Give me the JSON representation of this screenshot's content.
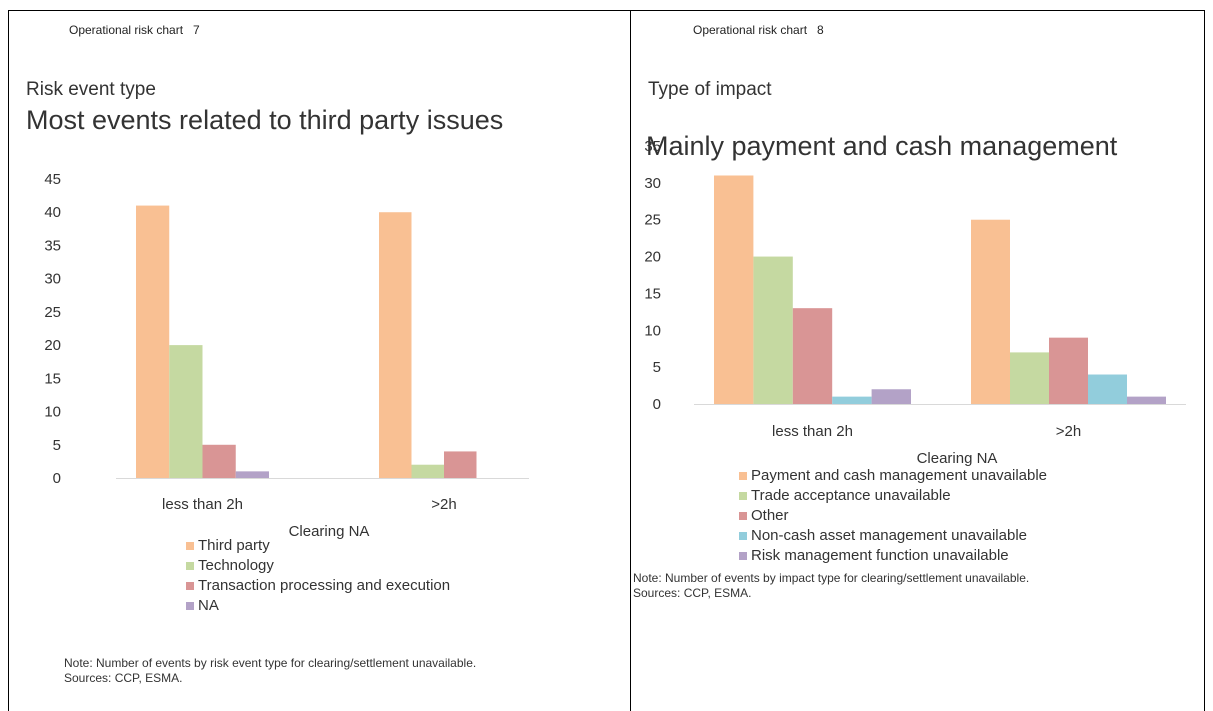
{
  "charts": [
    {
      "label": "Operational risk chart   7",
      "subtitle": "Risk event type",
      "title": "Most events related to third party issues",
      "note": "Note: Number of events by risk event type for clearing/settlement unavailable.",
      "sources": "Sources: CCP, ESMA.",
      "chart_data": {
        "type": "bar",
        "categories": [
          "less than 2h",
          ">2h"
        ],
        "xlabel": "Clearing NA",
        "ylim": [
          0,
          45
        ],
        "yticks": [
          0,
          5,
          10,
          15,
          20,
          25,
          30,
          35,
          40,
          45
        ],
        "grid": false,
        "legend_position": "bottom",
        "series": [
          {
            "name": "Third party",
            "values": [
              41,
              40
            ],
            "color": "#F9C093"
          },
          {
            "name": "Technology",
            "values": [
              20,
              2
            ],
            "color": "#C5D9A1"
          },
          {
            "name": "Transaction processing and execution",
            "values": [
              5,
              4
            ],
            "color": "#D99595"
          },
          {
            "name": "NA",
            "values": [
              1,
              0
            ],
            "color": "#B3A2C7"
          }
        ]
      }
    },
    {
      "label": "Operational risk chart   8",
      "subtitle": "Type of impact",
      "title": "Mainly payment and cash management",
      "note": "Note: Number of events by impact type for clearing/settlement unavailable.",
      "sources": "Sources: CCP, ESMA.",
      "chart_data": {
        "type": "bar",
        "categories": [
          "less than 2h",
          ">2h"
        ],
        "xlabel": "Clearing NA",
        "ylim": [
          0,
          35
        ],
        "yticks": [
          0,
          5,
          10,
          15,
          20,
          25,
          30,
          35
        ],
        "grid": false,
        "legend_position": "bottom",
        "series": [
          {
            "name": "Payment and cash management unavailable",
            "values": [
              31,
              25
            ],
            "color": "#F9C093"
          },
          {
            "name": "Trade acceptance unavailable",
            "values": [
              20,
              7
            ],
            "color": "#C5D9A1"
          },
          {
            "name": "Other",
            "values": [
              13,
              9
            ],
            "color": "#D99595"
          },
          {
            "name": "Non-cash asset management unavailable",
            "values": [
              1,
              4
            ],
            "color": "#92CDDC"
          },
          {
            "name": "Risk management function unavailable",
            "values": [
              2,
              1
            ],
            "color": "#B3A2C7"
          }
        ]
      }
    }
  ]
}
